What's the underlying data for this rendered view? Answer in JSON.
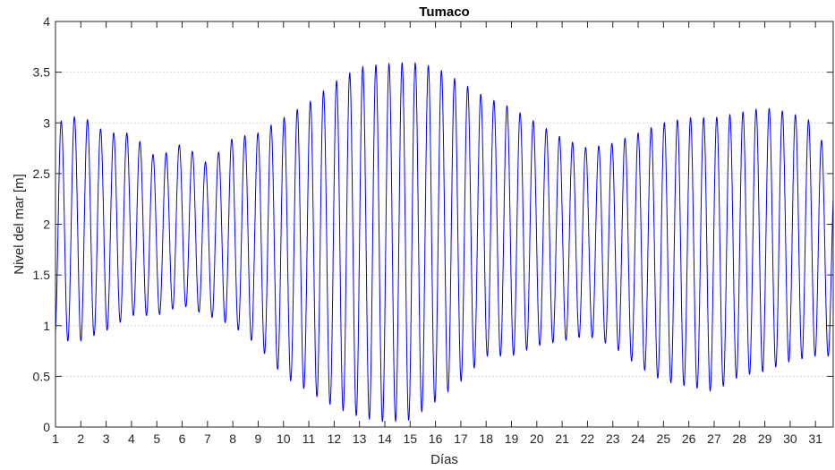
{
  "chart_data": {
    "type": "line",
    "title": "Tumaco",
    "xlabel": "Días",
    "ylabel": "Nivel del mar [m]",
    "xlim": [
      1,
      31.7
    ],
    "ylim": [
      0,
      4
    ],
    "xticks": [
      1,
      2,
      3,
      4,
      5,
      6,
      7,
      8,
      9,
      10,
      11,
      12,
      13,
      14,
      15,
      16,
      17,
      18,
      19,
      20,
      21,
      22,
      23,
      24,
      25,
      26,
      27,
      28,
      29,
      30,
      31
    ],
    "yticks": [
      0,
      0.5,
      1,
      1.5,
      2,
      2.5,
      3,
      3.5,
      4
    ],
    "xtick_labels": [
      "1",
      "2",
      "3",
      "4",
      "5",
      "6",
      "7",
      "8",
      "9",
      "10",
      "11",
      "12",
      "13",
      "14",
      "15",
      "16",
      "17",
      "18",
      "19",
      "20",
      "21",
      "22",
      "23",
      "24",
      "25",
      "26",
      "27",
      "28",
      "29",
      "30",
      "31"
    ],
    "ytick_labels": [
      "0",
      "0.5",
      "1",
      "1.5",
      "2",
      "2.5",
      "3",
      "3.5",
      "4"
    ],
    "grid": "y",
    "line_color": "#0000ff",
    "tide_period_days": 0.5175,
    "envelope": {
      "days": [
        1,
        2,
        3,
        4,
        5,
        6,
        7,
        8,
        9,
        10,
        11,
        12,
        13,
        14,
        15,
        16,
        17,
        18,
        19,
        20,
        21,
        22,
        23,
        24,
        25,
        26,
        27,
        28,
        29,
        30,
        31,
        31.7
      ],
      "high": [
        3.0,
        3.08,
        2.9,
        2.9,
        2.65,
        2.8,
        2.6,
        2.85,
        2.9,
        3.05,
        3.2,
        3.4,
        3.55,
        3.58,
        3.6,
        3.55,
        3.4,
        3.25,
        3.15,
        3.0,
        2.85,
        2.75,
        2.8,
        2.9,
        3.0,
        3.05,
        3.05,
        3.1,
        3.15,
        3.1,
        3.0,
        2.5
      ],
      "low": [
        0.85,
        0.85,
        0.95,
        1.1,
        1.1,
        1.2,
        1.1,
        1.0,
        0.8,
        0.5,
        0.35,
        0.2,
        0.1,
        0.05,
        0.07,
        0.25,
        0.45,
        0.7,
        0.7,
        0.8,
        0.85,
        0.9,
        0.8,
        0.6,
        0.45,
        0.4,
        0.35,
        0.5,
        0.55,
        0.65,
        0.7,
        0.7
      ]
    }
  }
}
